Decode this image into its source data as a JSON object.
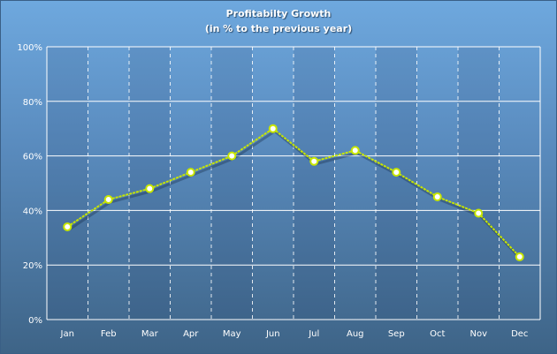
{
  "chart_data": {
    "type": "line",
    "title": "Profitabilty Growth",
    "subtitle": "(in % to the previous year)",
    "categories": [
      "Jan",
      "Feb",
      "Mar",
      "Apr",
      "May",
      "Jun",
      "Jul",
      "Aug",
      "Sep",
      "Oct",
      "Nov",
      "Dec"
    ],
    "series": [
      {
        "name": "Profitability Growth",
        "values": [
          34,
          44,
          48,
          54,
          60,
          70,
          58,
          62,
          54,
          45,
          39,
          23
        ]
      }
    ],
    "yticks": [
      "0%",
      "20%",
      "40%",
      "60%",
      "80%",
      "100%"
    ],
    "ylim": [
      0,
      100
    ],
    "grid": true,
    "colors": {
      "line": "#c8e600",
      "marker_fill": "#ffffff",
      "grid": "#ffffff"
    }
  }
}
